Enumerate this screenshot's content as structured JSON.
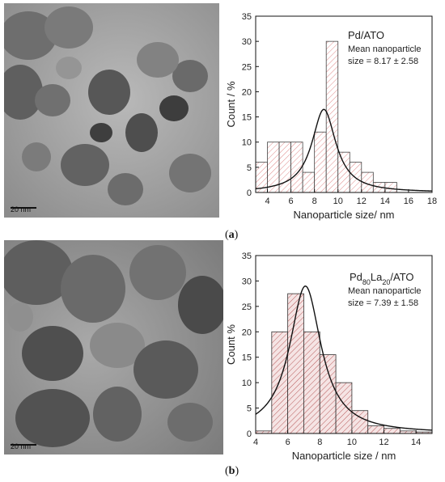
{
  "panels": [
    {
      "id": "a",
      "panel_label": "a",
      "tem_image": {
        "scale_label": "20  nm"
      },
      "chart_data": {
        "type": "bar",
        "title": "Pd/ATO",
        "annotation_lines": [
          "Mean nanoparticle",
          "size = 8.17 ± 2.58"
        ],
        "xlabel": "Nanoparticle size/ nm",
        "ylabel": "Count / %",
        "xlim": [
          3,
          18
        ],
        "ylim": [
          0,
          35
        ],
        "xticks": [
          4,
          6,
          8,
          10,
          12,
          14,
          16,
          18
        ],
        "yticks": [
          0,
          5,
          10,
          15,
          20,
          25,
          30,
          35
        ],
        "bin_width": 1,
        "bins": [
          {
            "start": 3,
            "value": 6
          },
          {
            "start": 4,
            "value": 10
          },
          {
            "start": 5,
            "value": 10
          },
          {
            "start": 6,
            "value": 10
          },
          {
            "start": 7,
            "value": 4
          },
          {
            "start": 8,
            "value": 12
          },
          {
            "start": 9,
            "value": 30
          },
          {
            "start": 10,
            "value": 8
          },
          {
            "start": 11,
            "value": 6
          },
          {
            "start": 12,
            "value": 4
          },
          {
            "start": 13,
            "value": 2
          },
          {
            "start": 14,
            "value": 2
          }
        ],
        "fit": {
          "type": "lorentzian",
          "center": 8.8,
          "peak": 16.5,
          "hwhm": 1.25,
          "xrange": [
            3,
            18
          ]
        },
        "bar_fill": "#ffffff",
        "hatch_color": "#e08a8a",
        "bar_stroke": "#444444"
      }
    },
    {
      "id": "b",
      "panel_label": "b",
      "tem_image": {
        "scale_label": "20  nm"
      },
      "chart_data": {
        "type": "bar",
        "title_parts": [
          {
            "text": "Pd",
            "sub": false
          },
          {
            "text": "80",
            "sub": true
          },
          {
            "text": "La",
            "sub": false
          },
          {
            "text": "20",
            "sub": true
          },
          {
            "text": "/ATO",
            "sub": false
          }
        ],
        "annotation_lines": [
          "Mean nanoparticle",
          "size = 7.39 ± 1.58"
        ],
        "xlabel": "Nanoparticle size / nm",
        "ylabel": "Count %",
        "xlim": [
          4,
          15
        ],
        "ylim": [
          0,
          35
        ],
        "xticks": [
          4,
          6,
          8,
          10,
          12,
          14
        ],
        "yticks": [
          0,
          5,
          10,
          15,
          20,
          25,
          30,
          35
        ],
        "bin_width": 1,
        "bins": [
          {
            "start": 4,
            "value": 0.5
          },
          {
            "start": 5,
            "value": 20
          },
          {
            "start": 6,
            "value": 27.5
          },
          {
            "start": 7,
            "value": 20
          },
          {
            "start": 8,
            "value": 15.5
          },
          {
            "start": 9,
            "value": 10
          },
          {
            "start": 10,
            "value": 4.5
          },
          {
            "start": 11,
            "value": 1.5
          },
          {
            "start": 12,
            "value": 1
          },
          {
            "start": 13,
            "value": 0.5
          },
          {
            "start": 14,
            "value": 0.3
          }
        ],
        "fit": {
          "type": "lorentzian",
          "center": 7.1,
          "peak": 29,
          "hwhm": 1.2,
          "xrange": [
            4,
            15
          ]
        },
        "bar_fill": "#f5e4e4",
        "hatch_color": "#b85a5a",
        "bar_stroke": "#333333"
      }
    }
  ]
}
